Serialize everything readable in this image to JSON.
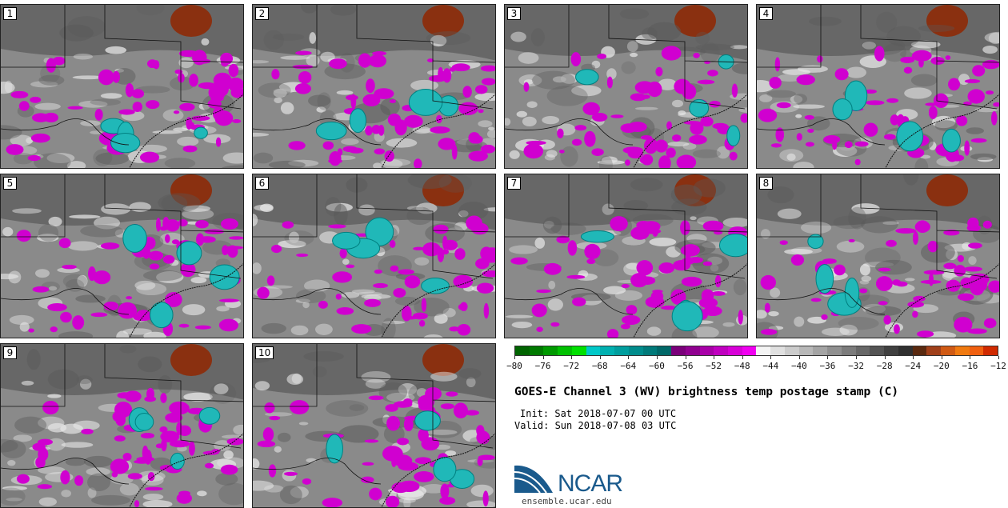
{
  "panels": [
    {
      "label": "1"
    },
    {
      "label": "2"
    },
    {
      "label": "3"
    },
    {
      "label": "4"
    },
    {
      "label": "5"
    },
    {
      "label": "6"
    },
    {
      "label": "7"
    },
    {
      "label": "8"
    },
    {
      "label": "9"
    },
    {
      "label": "10"
    }
  ],
  "colorbar": {
    "colors": [
      "#006400",
      "#007a00",
      "#009a00",
      "#00c000",
      "#00e000",
      "#00c8c8",
      "#00b0b0",
      "#009e9e",
      "#008c8c",
      "#007a7a",
      "#006868",
      "#7a007a",
      "#900090",
      "#a800a8",
      "#c000c0",
      "#d800d8",
      "#f000f0",
      "#f4f4f4",
      "#e0e0e0",
      "#cccccc",
      "#b8b8b8",
      "#a4a4a4",
      "#909090",
      "#7c7c7c",
      "#686868",
      "#545454",
      "#404040",
      "#303030",
      "#5a2a10",
      "#a0401a",
      "#d05a14",
      "#f07a10",
      "#f06010",
      "#d02a00"
    ],
    "ticks": [
      "−80",
      "−76",
      "−72",
      "−68",
      "−64",
      "−60",
      "−56",
      "−52",
      "−48",
      "−44",
      "−40",
      "−36",
      "−32",
      "−28",
      "−24",
      "−20",
      "−16",
      "−12"
    ]
  },
  "title": "GOES-E Channel 3 (WV) brightness temp postage stamp (C)",
  "init": "Init: Sat 2018-07-07 00 UTC",
  "valid": "Valid: Sun 2018-07-08 03 UTC",
  "logo": {
    "text": "NCAR",
    "url": "ensemble.ucar.edu",
    "color": "#1a5a8c"
  },
  "colors": {
    "cold_cyan": "#20b8b8",
    "magenta": "#d000d0",
    "dry_dark": "#4a4a4a",
    "warm_red": "#8a3010"
  }
}
